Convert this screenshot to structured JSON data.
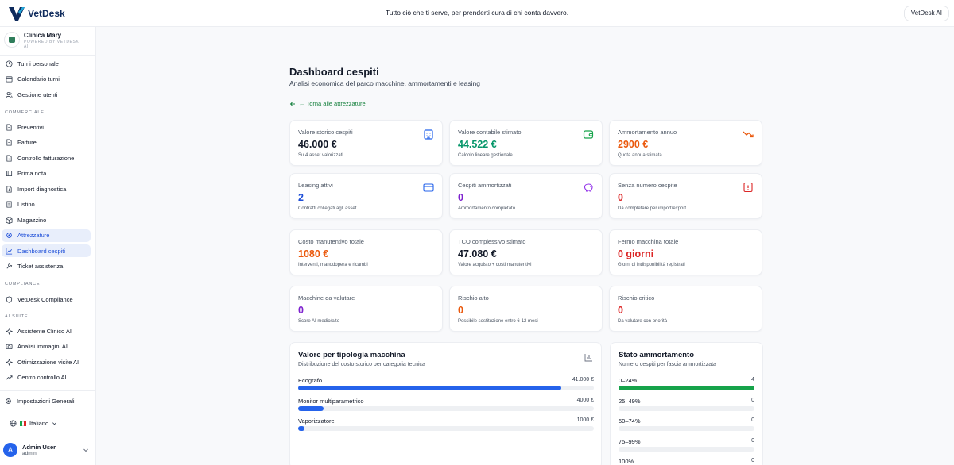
{
  "header": {
    "brand": "VetDesk",
    "tagline": "Tutto ciò che ti serve, per prenderti cura di chi conta davvero.",
    "ai_button": "VetDesk AI"
  },
  "sidebar": {
    "clinic_name": "Clinica Mary",
    "clinic_sub": "POWERED BY VETDESK AI",
    "group1": [
      {
        "label": "Turni personale",
        "icon": "clock-icon"
      },
      {
        "label": "Calendario turni",
        "icon": "calendar-icon"
      },
      {
        "label": "Gestione utenti",
        "icon": "users-icon"
      }
    ],
    "section_commerciale": "COMMERCIALE",
    "group2": [
      {
        "label": "Preventivi",
        "icon": "file-icon"
      },
      {
        "label": "Fatture",
        "icon": "file-icon"
      },
      {
        "label": "Controllo fatturazione",
        "icon": "file-check-icon"
      },
      {
        "label": "Prima nota",
        "icon": "book-icon"
      },
      {
        "label": "Import diagnostica",
        "icon": "file-import-icon"
      },
      {
        "label": "Listino",
        "icon": "list-icon"
      },
      {
        "label": "Magazzino",
        "icon": "box-icon"
      },
      {
        "label": "Attrezzature",
        "icon": "gear-icon"
      },
      {
        "label": "Dashboard cespiti",
        "icon": "chart-line-icon"
      },
      {
        "label": "Ticket assistenza",
        "icon": "wrench-icon"
      }
    ],
    "active_index": 8,
    "section_compliance": "COMPLIANCE",
    "compliance": {
      "label": "VetDesk Compliance",
      "icon": "shield-icon"
    },
    "section_ai": "AI SUITE",
    "group3": [
      {
        "label": "Assistente Clinico AI",
        "icon": "sparkle-icon"
      },
      {
        "label": "Analisi immagini AI",
        "icon": "camera-icon"
      },
      {
        "label": "Ottimizzazione visite AI",
        "icon": "sparkle-icon"
      },
      {
        "label": "Centro controllo AI",
        "icon": "trend-icon"
      }
    ],
    "settings": "Impostazioni Generali",
    "language": "Italiano",
    "user_initial": "A",
    "user_name": "Admin User",
    "user_role": "admin"
  },
  "page": {
    "title": "Dashboard cespiti",
    "subtitle": "Analisi economica del parco macchine, ammortamenti e leasing",
    "back_link": "← Torna alle attrezzature"
  },
  "kpis": [
    {
      "label": "Valore storico cespiti",
      "value": "46.000 €",
      "note": "Su 4 asset valorizzati",
      "color": "#111827",
      "icon": "building-icon",
      "icon_color": "#2563eb"
    },
    {
      "label": "Valore contabile stimato",
      "value": "44.522 €",
      "note": "Calcolo lineare gestionale",
      "color": "#059669",
      "icon": "wallet-icon",
      "icon_color": "#16a34a"
    },
    {
      "label": "Ammortamento annuo",
      "value": "2900 €",
      "note": "Quota annua stimata",
      "color": "#ea580c",
      "icon": "trend-down-icon",
      "icon_color": "#ea580c"
    },
    {
      "label": "Leasing attivi",
      "value": "2",
      "note": "Contratti collegati agli asset",
      "color": "#1d4ed8",
      "icon": "credit-card-icon",
      "icon_color": "#2563eb"
    },
    {
      "label": "Cespiti ammortizzati",
      "value": "0",
      "note": "Ammortamento completato",
      "color": "#7e22ce",
      "icon": "piggy-bank-icon",
      "icon_color": "#9333ea"
    },
    {
      "label": "Senza numero cespite",
      "value": "0",
      "note": "Da completare per import/export",
      "color": "#dc2626",
      "icon": "alert-icon",
      "icon_color": "#dc2626"
    },
    {
      "label": "Costo manutentivo totale",
      "value": "1080 €",
      "note": "Interventi, manodopera e ricambi",
      "color": "#ea580c",
      "icon": "",
      "icon_color": ""
    },
    {
      "label": "TCO complessivo stimato",
      "value": "47.080 €",
      "note": "Valore acquisto + costi manutentivi",
      "color": "#111827",
      "icon": "",
      "icon_color": ""
    },
    {
      "label": "Fermo macchina totale",
      "value": "0 giorni",
      "note": "Giorni di indisponibilità registrati",
      "color": "#dc2626",
      "icon": "",
      "icon_color": ""
    },
    {
      "label": "Macchine da valutare",
      "value": "0",
      "note": "Score AI medio/alto",
      "color": "#7e22ce",
      "icon": "",
      "icon_color": ""
    },
    {
      "label": "Rischio alto",
      "value": "0",
      "note": "Possibile sostituzione entro 6-12 mesi",
      "color": "#ea580c",
      "icon": "",
      "icon_color": ""
    },
    {
      "label": "Rischio critico",
      "value": "0",
      "note": "Da valutare con priorità",
      "color": "#dc2626",
      "icon": "",
      "icon_color": ""
    }
  ],
  "value_panel": {
    "title": "Valore per tipologia macchina",
    "subtitle": "Distribuzione del costo storico per categoria tecnica",
    "icon": "bar-chart-icon",
    "rows": [
      {
        "label": "Ecografo",
        "value": "41.000 €",
        "fraction": 0.89
      },
      {
        "label": "Monitor multiparametrico",
        "value": "4000 €",
        "fraction": 0.087
      },
      {
        "label": "Vaporizzatore",
        "value": "1000 €",
        "fraction": 0.022
      }
    ],
    "bar_color": "#2563eb"
  },
  "depr_panel": {
    "title": "Stato ammortamento",
    "subtitle": "Numero cespiti per fascia ammortizzata",
    "rows": [
      {
        "label": "0–24%",
        "value": "4",
        "fraction": 1.0
      },
      {
        "label": "25–49%",
        "value": "0",
        "fraction": 0
      },
      {
        "label": "50–74%",
        "value": "0",
        "fraction": 0
      },
      {
        "label": "75–99%",
        "value": "0",
        "fraction": 0
      },
      {
        "label": "100%",
        "value": "0",
        "fraction": 0
      }
    ],
    "bar_color": "#16a34a"
  }
}
